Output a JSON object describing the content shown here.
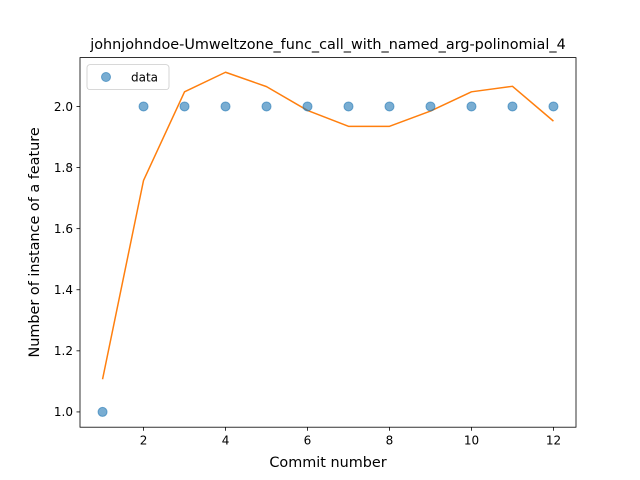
{
  "chart_data": {
    "type": "scatter",
    "title": "johnjohndoe-Umweltzone_func_call_with_named_arg-polinomial_4",
    "xlabel": "Commit number",
    "ylabel": "Number of instance of a feature",
    "xlim": [
      0.45,
      12.55
    ],
    "ylim": [
      0.95,
      2.16
    ],
    "xticks": [
      2,
      4,
      6,
      8,
      10,
      12
    ],
    "yticks": [
      1.0,
      1.2,
      1.4,
      1.6,
      1.8,
      2.0
    ],
    "grid": false,
    "legend_position": "upper-left",
    "series": [
      {
        "name": "data",
        "kind": "scatter",
        "color": "#1f77b4",
        "x": [
          1,
          2,
          3,
          4,
          5,
          6,
          7,
          8,
          9,
          10,
          11,
          12
        ],
        "y": [
          1.0,
          2.0,
          2.0,
          2.0,
          2.0,
          2.0,
          2.0,
          2.0,
          2.0,
          2.0,
          2.0,
          2.0
        ]
      },
      {
        "kind": "line",
        "color": "#ff7f0e",
        "x": [
          1,
          2,
          3,
          4,
          5,
          6,
          7,
          8,
          9,
          10,
          11,
          12
        ],
        "y": [
          1.107,
          1.758,
          2.048,
          2.112,
          2.065,
          1.987,
          1.935,
          1.935,
          1.985,
          2.048,
          2.066,
          1.952
        ]
      }
    ]
  }
}
